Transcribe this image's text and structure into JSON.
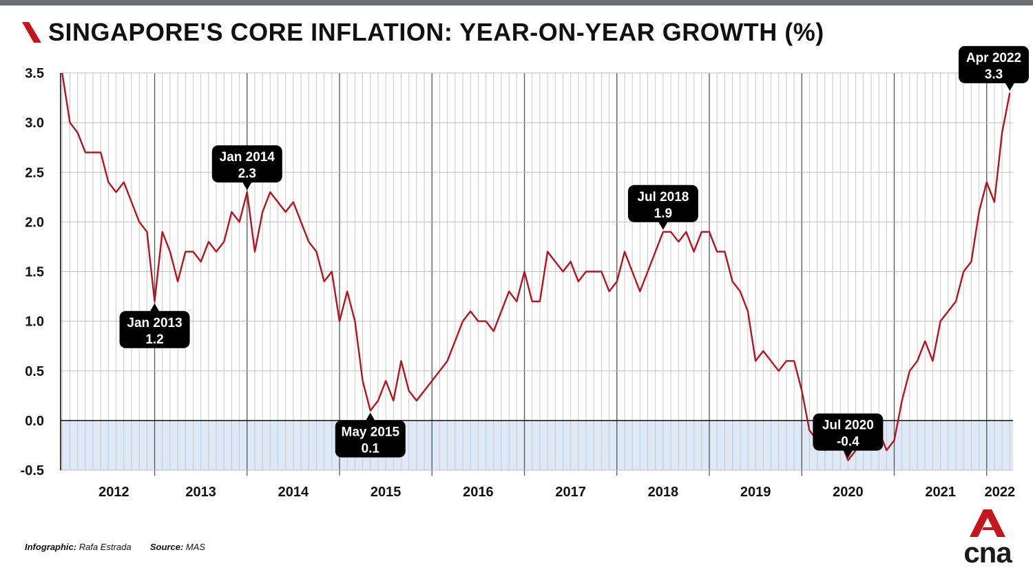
{
  "header": {
    "title": "SINGAPORE'S CORE INFLATION: YEAR-ON-YEAR GROWTH (%)"
  },
  "colors": {
    "line": "#b5121b",
    "negative_band": "#dde9f6",
    "callout_bg": "#000000",
    "grid_major": "#555555",
    "grid_minor": "#c8c8c8",
    "brand_red": "#c4161c"
  },
  "chart_data": {
    "type": "line",
    "title": "SINGAPORE'S CORE INFLATION: YEAR-ON-YEAR GROWTH (%)",
    "xlabel": "",
    "ylabel": "",
    "ylim": [
      -0.5,
      3.5
    ],
    "yticks": [
      -0.5,
      0.0,
      0.5,
      1.0,
      1.5,
      2.0,
      2.5,
      3.0,
      3.5
    ],
    "ytick_labels": [
      "-0.5",
      "0.0",
      "0.5",
      "1.0",
      "1.5",
      "2.0",
      "2.5",
      "3.0",
      "3.5"
    ],
    "x_start": "Jan 2012",
    "x_end": "Apr 2022",
    "year_labels": [
      "2012",
      "2013",
      "2014",
      "2015",
      "2016",
      "2017",
      "2018",
      "2019",
      "2020",
      "2021",
      "2022"
    ],
    "grid": true,
    "series": [
      {
        "name": "Core inflation (% YoY)",
        "values": [
          3.5,
          3.0,
          2.9,
          2.7,
          2.7,
          2.7,
          2.4,
          2.3,
          2.4,
          2.2,
          2.0,
          1.9,
          1.2,
          1.9,
          1.7,
          1.4,
          1.7,
          1.7,
          1.6,
          1.8,
          1.7,
          1.8,
          2.1,
          2.0,
          2.3,
          1.7,
          2.1,
          2.3,
          2.2,
          2.1,
          2.2,
          2.0,
          1.8,
          1.7,
          1.4,
          1.5,
          1.0,
          1.3,
          1.0,
          0.4,
          0.1,
          0.2,
          0.4,
          0.2,
          0.6,
          0.3,
          0.2,
          0.3,
          0.4,
          0.5,
          0.6,
          0.8,
          1.0,
          1.1,
          1.0,
          1.0,
          0.9,
          1.1,
          1.3,
          1.2,
          1.5,
          1.2,
          1.2,
          1.7,
          1.6,
          1.5,
          1.6,
          1.4,
          1.5,
          1.5,
          1.5,
          1.3,
          1.4,
          1.7,
          1.5,
          1.3,
          1.5,
          1.7,
          1.9,
          1.9,
          1.8,
          1.9,
          1.7,
          1.9,
          1.9,
          1.7,
          1.7,
          1.4,
          1.3,
          1.1,
          0.6,
          0.7,
          0.6,
          0.5,
          0.6,
          0.6,
          0.3,
          -0.1,
          -0.2,
          -0.3,
          -0.2,
          -0.2,
          -0.4,
          -0.3,
          -0.1,
          -0.2,
          -0.1,
          -0.3,
          -0.2,
          0.2,
          0.5,
          0.6,
          0.8,
          0.6,
          1.0,
          1.1,
          1.2,
          1.5,
          1.6,
          2.1,
          2.4,
          2.2,
          2.9,
          3.3
        ]
      }
    ],
    "annotations": [
      {
        "label": "Jan 2013",
        "value_text": "1.2",
        "index": 12,
        "position": "below"
      },
      {
        "label": "Jan 2014",
        "value_text": "2.3",
        "index": 24,
        "position": "above"
      },
      {
        "label": "May 2015",
        "value_text": "0.1",
        "index": 40,
        "position": "below"
      },
      {
        "label": "Jul 2018",
        "value_text": "1.9",
        "index": 78,
        "position": "above"
      },
      {
        "label": "Jul 2020",
        "value_text": "-0.4",
        "index": 102,
        "position": "above"
      },
      {
        "label": "Apr 2022",
        "value_text": "3.3",
        "index": 123,
        "position": "above"
      }
    ]
  },
  "footer": {
    "infographic_label": "Infographic:",
    "infographic_name": "Rafa Estrada",
    "source_label": "Source:",
    "source_name": "MAS"
  },
  "brand": {
    "logo_text": "cna"
  }
}
